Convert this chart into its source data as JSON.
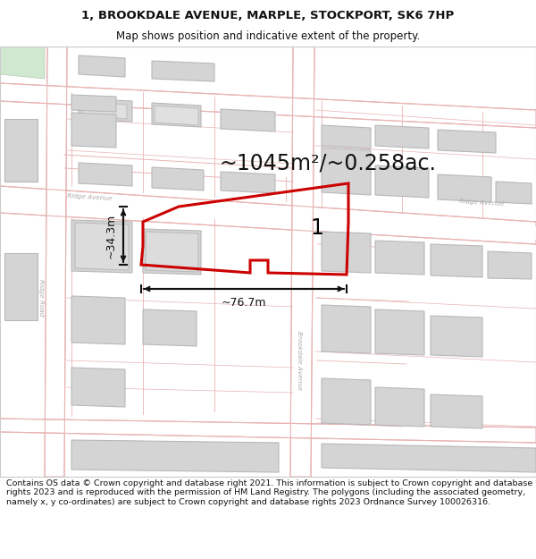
{
  "title_line1": "1, BROOKDALE AVENUE, MARPLE, STOCKPORT, SK6 7HP",
  "title_line2": "Map shows position and indicative extent of the property.",
  "area_text": "~1045m²/~0.258ac.",
  "width_label": "~76.7m",
  "height_label": "~34.3m",
  "plot_number": "1",
  "footer_text": "Contains OS data © Crown copyright and database right 2021. This information is subject to Crown copyright and database rights 2023 and is reproduced with the permission of HM Land Registry. The polygons (including the associated geometry, namely x, y co-ordinates) are subject to Crown copyright and database rights 2023 Ordnance Survey 100026316.",
  "map_bg": "#f7f7f5",
  "road_outline_color": "#e8b4b4",
  "road_fill_color": "#ffffff",
  "building_fill": "#d4d4d4",
  "building_edge": "#b8b8b8",
  "plot_outline": "#cc0000",
  "arrow_color": "#111111",
  "text_color": "#111111",
  "title_fontsize": 9.5,
  "subtitle_fontsize": 8.5,
  "area_fontsize": 17,
  "label_fontsize": 9,
  "footnote_fontsize": 6.8
}
